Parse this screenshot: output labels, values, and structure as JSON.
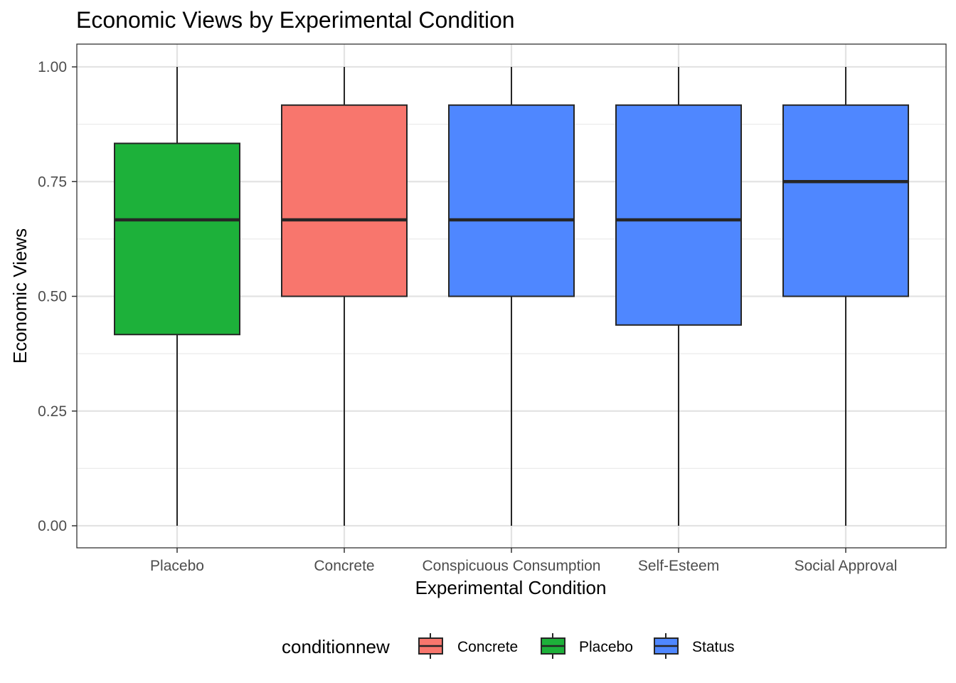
{
  "chart_data": {
    "type": "boxplot",
    "title": "Economic Views by Experimental Condition",
    "xlabel": "Experimental Condition",
    "ylabel": "Economic Views",
    "ylim": [
      -0.05,
      1.05
    ],
    "y_ticks": [
      "0.00",
      "0.25",
      "0.50",
      "0.75",
      "1.00"
    ],
    "y_tick_values": [
      0,
      0.25,
      0.5,
      0.75,
      1.0
    ],
    "grid": true,
    "legend_position": "bottom",
    "legend": {
      "title": "conditionnew",
      "items": [
        {
          "label": "Concrete",
          "color": "#F8766D"
        },
        {
          "label": "Placebo",
          "color": "#1DB13A"
        },
        {
          "label": "Status",
          "color": "#4F87FF"
        }
      ]
    },
    "categories": [
      "Placebo",
      "Concrete",
      "Conspicuous Consumption",
      "Self-Esteem",
      "Social Approval"
    ],
    "boxes": [
      {
        "category": "Placebo",
        "group": "Placebo",
        "min": 0.0,
        "q1": 0.4167,
        "median": 0.6667,
        "q3": 0.8333,
        "max": 1.0
      },
      {
        "category": "Concrete",
        "group": "Concrete",
        "min": 0.0,
        "q1": 0.5,
        "median": 0.6667,
        "q3": 0.9167,
        "max": 1.0
      },
      {
        "category": "Conspicuous Consumption",
        "group": "Status",
        "min": 0.0,
        "q1": 0.5,
        "median": 0.6667,
        "q3": 0.9167,
        "max": 1.0
      },
      {
        "category": "Self-Esteem",
        "group": "Status",
        "min": 0.0,
        "q1": 0.4375,
        "median": 0.6667,
        "q3": 0.9167,
        "max": 1.0
      },
      {
        "category": "Social Approval",
        "group": "Status",
        "min": 0.0,
        "q1": 0.5,
        "median": 0.75,
        "q3": 0.9167,
        "max": 1.0
      }
    ]
  }
}
